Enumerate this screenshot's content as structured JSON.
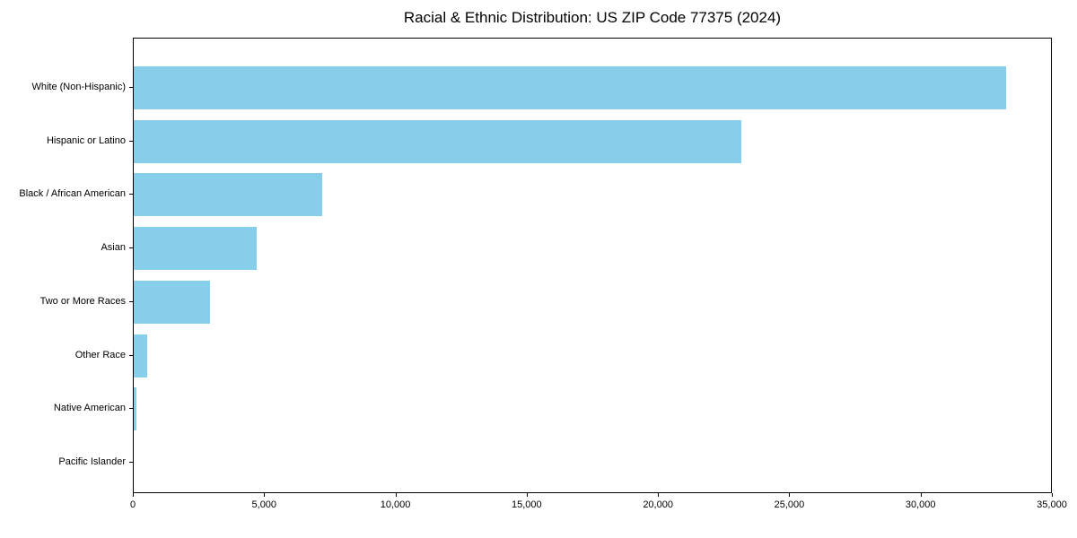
{
  "chart_data": {
    "type": "bar",
    "orientation": "horizontal",
    "title": "Racial & Ethnic Distribution: US ZIP Code 77375 (2024)",
    "categories": [
      "White (Non-Hispanic)",
      "Hispanic or Latino",
      "Black / African American",
      "Asian",
      "Two or More Races",
      "Other Race",
      "Native American",
      "Pacific Islander"
    ],
    "values": [
      33300,
      23200,
      7200,
      4700,
      2900,
      520,
      100,
      0
    ],
    "xlabel": "",
    "ylabel": "",
    "xlim": [
      0,
      35000
    ],
    "x_ticks": [
      0,
      5000,
      10000,
      15000,
      20000,
      25000,
      30000,
      35000
    ],
    "x_tick_labels": [
      "0",
      "5,000",
      "10,000",
      "15,000",
      "20,000",
      "25,000",
      "30,000",
      "35,000"
    ],
    "bar_color": "#87CEEB",
    "axis_color": "#000000",
    "background_color": "#ffffff",
    "grid": false,
    "legend": null
  }
}
